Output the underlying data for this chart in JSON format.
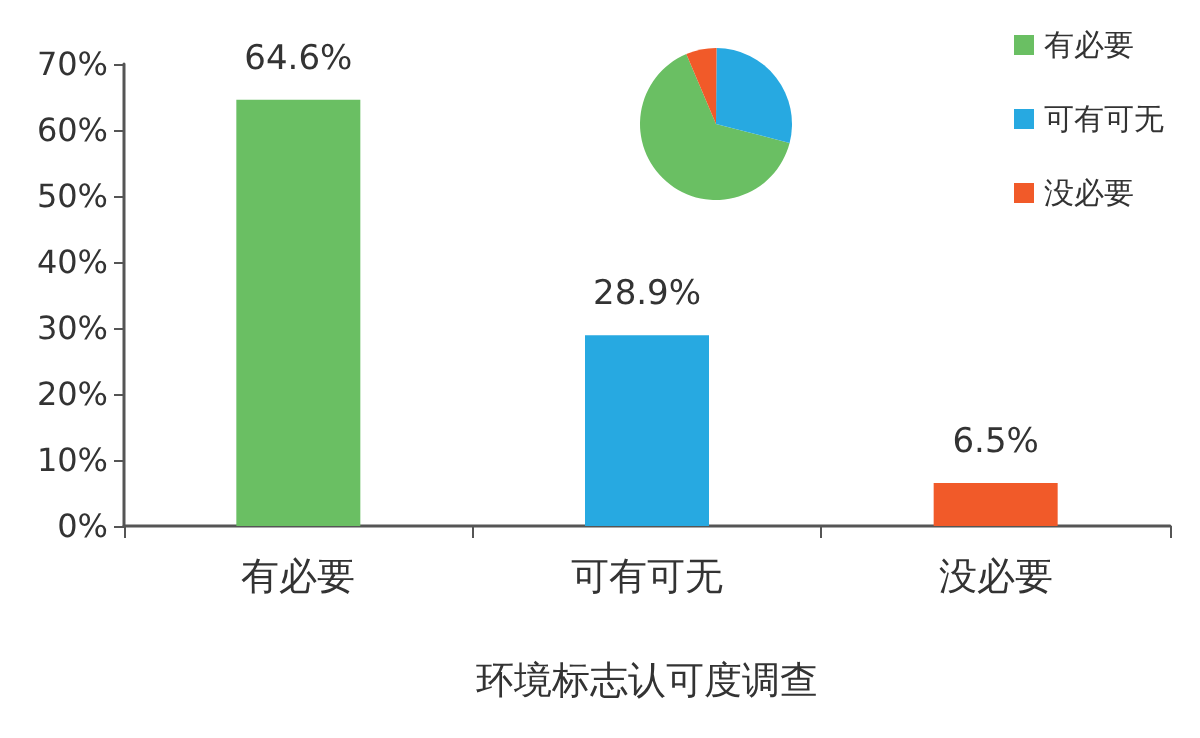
{
  "chart_data": [
    {
      "type": "bar",
      "xlabel": "环境标志认可度调查",
      "categories": [
        "有必要",
        "可有可无",
        "没必要"
      ],
      "values": [
        64.6,
        28.9,
        6.5
      ],
      "colors": [
        "#6abf63",
        "#27a9e1",
        "#f15a29"
      ],
      "value_labels": [
        "64.6%",
        "28.9%",
        "6.5%"
      ],
      "ylim": [
        0,
        70
      ],
      "yticks": [
        {
          "value": 0,
          "label": "0%"
        },
        {
          "value": 10,
          "label": "10%"
        },
        {
          "value": 20,
          "label": "20%"
        },
        {
          "value": 30,
          "label": "30%"
        },
        {
          "value": 40,
          "label": "40%"
        },
        {
          "value": 50,
          "label": "50%"
        },
        {
          "value": 60,
          "label": "60%"
        },
        {
          "value": 70,
          "label": "70%"
        }
      ],
      "grid": false
    },
    {
      "type": "pie",
      "categories": [
        "有必要",
        "可有可无",
        "没必要"
      ],
      "values": [
        64.6,
        28.9,
        6.5
      ],
      "colors": [
        "#6abf63",
        "#27a9e1",
        "#f15a29"
      ],
      "legend": "top right"
    }
  ]
}
